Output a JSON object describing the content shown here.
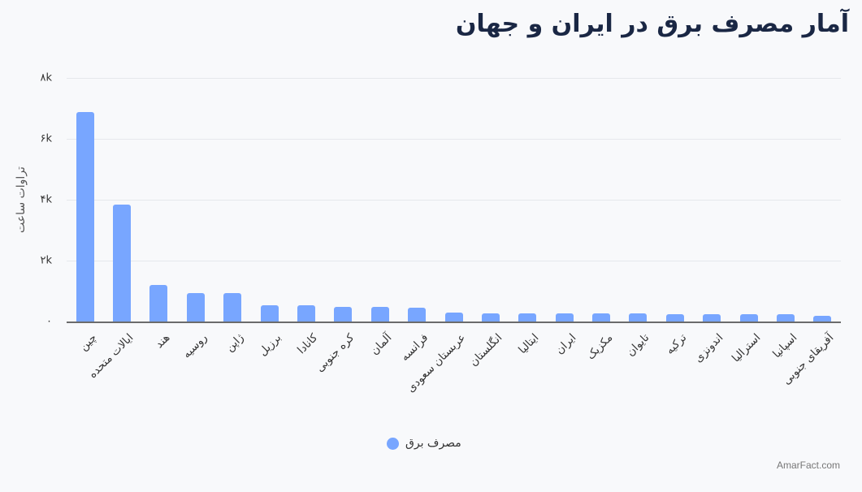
{
  "title": "آمار مصرف برق در ایران و جهان",
  "credit": "AmarFact.com",
  "colors": {
    "bar": "#78a6ff",
    "title": "#1a2744",
    "background": "#f8f9fb"
  },
  "chart_data": {
    "type": "bar",
    "title": "آمار مصرف برق در ایران و جهان",
    "xlabel": "",
    "ylabel": "تراوات ساعت",
    "ylim": [
      0,
      8000
    ],
    "yticks": [
      0,
      2000,
      4000,
      6000,
      8000
    ],
    "ytick_labels": [
      "۰",
      "۲k",
      "۴k",
      "۶k",
      "۸k"
    ],
    "grid": true,
    "legend_position": "bottom",
    "categories": [
      "چین",
      "ایالات متحده",
      "هند",
      "روسیه",
      "ژاپن",
      "برزیل",
      "کانادا",
      "کره جنوبی",
      "آلمان",
      "فرانسه",
      "عربستان سعودی",
      "انگلستان",
      "ایتالیا",
      "ایران",
      "مکزیک",
      "تایوان",
      "ترکیه",
      "اندونزی",
      "استرالیا",
      "اسپانیا",
      "آفریقای جنوبی"
    ],
    "series": [
      {
        "name": "مصرف برق",
        "values": [
          6870,
          3850,
          1190,
          930,
          930,
          530,
          530,
          490,
          490,
          450,
          290,
          280,
          280,
          280,
          280,
          280,
          240,
          240,
          240,
          240,
          200
        ]
      }
    ]
  }
}
